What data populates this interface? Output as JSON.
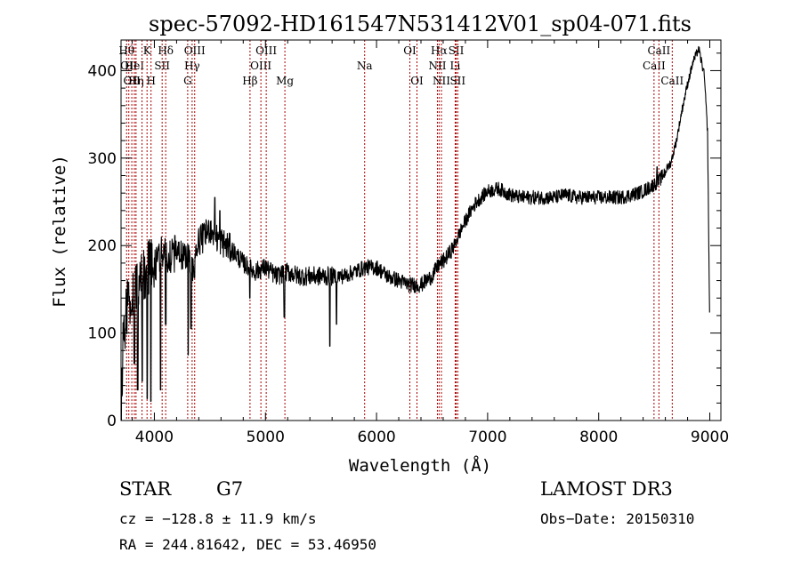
{
  "chart_data": {
    "type": "line",
    "title": "spec-57092-HD161547N531412V01_sp04-071.fits",
    "xlabel": "Wavelength (Å)",
    "ylabel": "Flux (relative)",
    "xlim": [
      3700,
      9100
    ],
    "ylim": [
      0,
      435
    ],
    "xticks": [
      4000,
      5000,
      6000,
      7000,
      8000,
      9000
    ],
    "yticks": [
      0,
      100,
      200,
      300,
      400
    ],
    "grid": false,
    "line_color": "#000000",
    "marker_color": "#aa0000",
    "spectrum_anchors": {
      "x": [
        3700,
        3720,
        3750,
        3800,
        3850,
        3900,
        3950,
        4000,
        4050,
        4100,
        4150,
        4200,
        4250,
        4300,
        4350,
        4400,
        4450,
        4500,
        4550,
        4600,
        4700,
        4800,
        4900,
        5000,
        5100,
        5200,
        5300,
        5400,
        5500,
        5600,
        5700,
        5800,
        5900,
        6000,
        6100,
        6200,
        6300,
        6400,
        6500,
        6560,
        6600,
        6650,
        6700,
        6750,
        6800,
        6850,
        6900,
        7000,
        7100,
        7200,
        7300,
        7400,
        7500,
        7600,
        7700,
        7800,
        7900,
        8000,
        8100,
        8200,
        8300,
        8400,
        8500,
        8550,
        8600,
        8650,
        8700,
        8750,
        8800,
        8850,
        8900,
        8950,
        8980,
        9000
      ],
      "y": [
        10,
        90,
        130,
        140,
        150,
        165,
        175,
        180,
        188,
        190,
        190,
        192,
        188,
        190,
        170,
        205,
        210,
        220,
        210,
        205,
        195,
        180,
        170,
        175,
        165,
        170,
        165,
        165,
        165,
        165,
        165,
        170,
        175,
        175,
        165,
        160,
        155,
        155,
        165,
        178,
        182,
        190,
        200,
        215,
        228,
        240,
        250,
        262,
        265,
        258,
        255,
        255,
        255,
        255,
        258,
        255,
        255,
        255,
        255,
        255,
        258,
        262,
        270,
        275,
        285,
        295,
        320,
        355,
        385,
        410,
        425,
        395,
        330,
        100
      ]
    },
    "dips": [
      {
        "x": 3820,
        "y": 65
      },
      {
        "x": 3850,
        "y": 35
      },
      {
        "x": 3890,
        "y": 45
      },
      {
        "x": 3935,
        "y": 25
      },
      {
        "x": 3968,
        "y": 22
      },
      {
        "x": 4055,
        "y": 35
      },
      {
        "x": 4102,
        "y": 110
      },
      {
        "x": 4305,
        "y": 75
      },
      {
        "x": 4330,
        "y": 105
      },
      {
        "x": 4860,
        "y": 140
      },
      {
        "x": 5170,
        "y": 118
      },
      {
        "x": 5580,
        "y": 85
      },
      {
        "x": 5640,
        "y": 110
      }
    ],
    "spikes": [
      {
        "x": 4545,
        "y": 255
      },
      {
        "x": 4590,
        "y": 240
      },
      {
        "x": 6330,
        "y": 120
      },
      {
        "x": 8525,
        "y": 290
      }
    ],
    "line_markers": [
      {
        "wave": 3750,
        "row": 1,
        "label": "Hθ"
      },
      {
        "wave": 3770,
        "row": 2,
        "label": "OII"
      },
      {
        "wave": 3797,
        "row": 3,
        "label": "OII"
      },
      {
        "wave": 3820,
        "row": 2,
        "label": "HeI"
      },
      {
        "wave": 3835,
        "row": 3,
        "label": "Hη"
      },
      {
        "wave": 3889,
        "row": 3,
        "label": ""
      },
      {
        "wave": 3934,
        "row": 1,
        "label": "K"
      },
      {
        "wave": 3970,
        "row": 3,
        "label": "H"
      },
      {
        "wave": 4070,
        "row": 2,
        "label": "SII"
      },
      {
        "wave": 4102,
        "row": 1,
        "label": "Hδ"
      },
      {
        "wave": 4300,
        "row": 3,
        "label": "G"
      },
      {
        "wave": 4340,
        "row": 2,
        "label": "Hγ"
      },
      {
        "wave": 4363,
        "row": 1,
        "label": "OIII"
      },
      {
        "wave": 4861,
        "row": 3,
        "label": "Hβ"
      },
      {
        "wave": 4959,
        "row": 2,
        "label": "OIII"
      },
      {
        "wave": 5007,
        "row": 1,
        "label": "OIII"
      },
      {
        "wave": 5175,
        "row": 3,
        "label": "Mg"
      },
      {
        "wave": 5893,
        "row": 2,
        "label": "Na"
      },
      {
        "wave": 6300,
        "row": 1,
        "label": "OI"
      },
      {
        "wave": 6364,
        "row": 3,
        "label": "OI"
      },
      {
        "wave": 6548,
        "row": 2,
        "label": "NII"
      },
      {
        "wave": 6563,
        "row": 1,
        "label": "Hα"
      },
      {
        "wave": 6584,
        "row": 3,
        "label": "NII"
      },
      {
        "wave": 6708,
        "row": 2,
        "label": "Li"
      },
      {
        "wave": 6717,
        "row": 1,
        "label": "SII"
      },
      {
        "wave": 6731,
        "row": 3,
        "label": "SII"
      },
      {
        "wave": 8498,
        "row": 2,
        "label": "CaII"
      },
      {
        "wave": 8542,
        "row": 1,
        "label": "CaII"
      },
      {
        "wave": 8662,
        "row": 3,
        "label": "CaII"
      }
    ]
  },
  "info": {
    "class_label": "STAR",
    "subclass_label": "G7",
    "survey_label": "LAMOST DR3",
    "cz_text": "cz = −128.8 ± 11.9 km/s",
    "obs_date_text": "Obs−Date: 20150310",
    "radec_text": "RA = 244.81642, DEC =  53.46950"
  }
}
